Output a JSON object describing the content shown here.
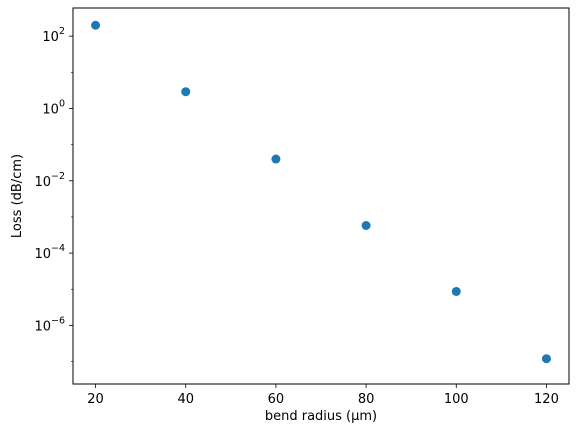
{
  "chart_data": {
    "type": "scatter",
    "title": "",
    "xlabel": "bend radius (μm)",
    "ylabel": "Loss (dB/cm)",
    "x_scale": "linear",
    "y_scale": "log",
    "xlim": [
      15,
      125
    ],
    "ylim": [
      2.4e-08,
      600
    ],
    "x_ticks": [
      20,
      40,
      60,
      80,
      100,
      120
    ],
    "x_tick_labels": [
      "20",
      "40",
      "60",
      "80",
      "100",
      "120"
    ],
    "y_ticks": [
      1e-06,
      0.0001,
      0.01,
      1,
      100
    ],
    "y_tick_labels": [
      {
        "base": "10",
        "exp": "−6"
      },
      {
        "base": "10",
        "exp": "−4"
      },
      {
        "base": "10",
        "exp": "−2"
      },
      {
        "base": "10",
        "exp": "0"
      },
      {
        "base": "10",
        "exp": "2"
      }
    ],
    "grid": false,
    "legend": "none",
    "marker_color": "#1f77b4",
    "points": [
      {
        "x": 20,
        "y": 200
      },
      {
        "x": 40,
        "y": 2.9
      },
      {
        "x": 60,
        "y": 0.04
      },
      {
        "x": 80,
        "y": 0.00058
      },
      {
        "x": 100,
        "y": 8.7e-06
      },
      {
        "x": 120,
        "y": 1.2e-07
      }
    ]
  }
}
